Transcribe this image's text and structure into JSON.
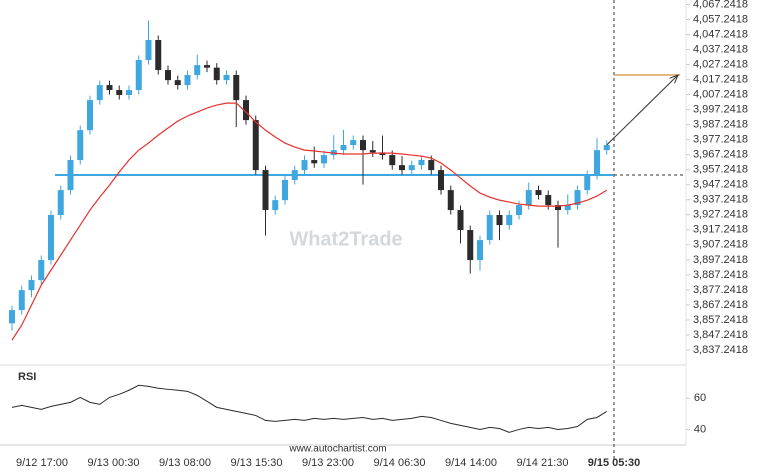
{
  "chart_data": {
    "type": "candlestick",
    "watermark": "What2Trade",
    "source": "www.autochartist.com",
    "up_color": "#3fa7df",
    "down_color": "#2b2b2b",
    "ma_color": "#e8312f",
    "level_color": "#3fa7df",
    "target_color": "#d9a05b",
    "ylim": [
      3829.2418,
      4070.2418
    ],
    "yticks": [
      {
        "value": 4067.2418,
        "label": "4,067.2418"
      },
      {
        "value": 4057.2418,
        "label": "4,057.2418"
      },
      {
        "value": 4047.2418,
        "label": "4,047.2418"
      },
      {
        "value": 4037.2418,
        "label": "4,037.2418"
      },
      {
        "value": 4027.2418,
        "label": "4,027.2418"
      },
      {
        "value": 4017.2418,
        "label": "4,017.2418"
      },
      {
        "value": 4007.2418,
        "label": "4,007.2418"
      },
      {
        "value": 3997.2418,
        "label": "3,997.2418"
      },
      {
        "value": 3987.2418,
        "label": "3,987.2418"
      },
      {
        "value": 3977.2418,
        "label": "3,977.2418"
      },
      {
        "value": 3967.2418,
        "label": "3,967.2418"
      },
      {
        "value": 3957.2418,
        "label": "3,957.2418"
      },
      {
        "value": 3947.2418,
        "label": "3,947.2418"
      },
      {
        "value": 3937.2418,
        "label": "3,937.2418"
      },
      {
        "value": 3927.2418,
        "label": "3,927.2418"
      },
      {
        "value": 3917.2418,
        "label": "3,917.2418"
      },
      {
        "value": 3907.2418,
        "label": "3,907.2418"
      },
      {
        "value": 3897.2418,
        "label": "3,897.2418"
      },
      {
        "value": 3887.2418,
        "label": "3,887.2418"
      },
      {
        "value": 3877.2418,
        "label": "3,877.2418"
      },
      {
        "value": 3867.2418,
        "label": "3,867.2418"
      },
      {
        "value": 3857.2418,
        "label": "3,857.2418"
      },
      {
        "value": 3847.2418,
        "label": "3,847.2418"
      },
      {
        "value": 3837.2418,
        "label": "3,837.2418"
      }
    ],
    "x_labels": [
      "9/12 17:00",
      "9/13 00:30",
      "9/13 08:00",
      "9/13 15:30",
      "9/13 23:00",
      "9/14 06:30",
      "9/14 14:00",
      "9/14 21:30",
      "9/15 05:30"
    ],
    "support": 3953.7,
    "target": 4020.3,
    "candles": [
      [
        3855,
        3866.8,
        3850.1,
        3863.8
      ],
      [
        3863.8,
        3880.1,
        3860.8,
        3877.1
      ],
      [
        3877.1,
        3886.8,
        3872.4,
        3883.8
      ],
      [
        3883.8,
        3900.1,
        3880.8,
        3897.1
      ],
      [
        3897.1,
        3930.1,
        3894.1,
        3927.1
      ],
      [
        3927.1,
        3946.7,
        3924.1,
        3943.7
      ],
      [
        3943.7,
        3966.7,
        3940.7,
        3963.7
      ],
      [
        3963.7,
        3986.6,
        3960.7,
        3983.6
      ],
      [
        3983.6,
        4006.6,
        3980.6,
        4003.6
      ],
      [
        4003.6,
        4016.6,
        4000.6,
        4013.6
      ],
      [
        4013.6,
        4016.6,
        4007.3,
        4010.3
      ],
      [
        4010.3,
        4013.3,
        4004.0,
        4007.0
      ],
      [
        4007.0,
        4013.3,
        4004.0,
        4010.3
      ],
      [
        4010.3,
        4033.3,
        4007.3,
        4030.3
      ],
      [
        4030.3,
        4056.6,
        4027.3,
        4043.6
      ],
      [
        4043.6,
        4046.6,
        4020.6,
        4023.6
      ],
      [
        4023.6,
        4026.6,
        4013.9,
        4016.9
      ],
      [
        4016.9,
        4019.9,
        4010.6,
        4013.6
      ],
      [
        4013.6,
        4023.3,
        4010.6,
        4020.3
      ],
      [
        4020.3,
        4033.9,
        4017.3,
        4026.9
      ],
      [
        4026.9,
        4029.9,
        4022.2,
        4025.2
      ],
      [
        4025.2,
        4028.2,
        4013.9,
        4016.9
      ],
      [
        4016.9,
        4023.3,
        4013.9,
        4020.3
      ],
      [
        4020.3,
        4023.3,
        3985.6,
        4003.6
      ],
      [
        4003.6,
        4006.6,
        3987.3,
        3990.3
      ],
      [
        3990.3,
        3993.3,
        3954.0,
        3957.0
      ],
      [
        3957.0,
        3960.0,
        3913.4,
        3930.4
      ],
      [
        3930.4,
        3940.0,
        3927.4,
        3937.0
      ],
      [
        3937.0,
        3953.4,
        3934.0,
        3950.4
      ],
      [
        3950.4,
        3960.0,
        3947.4,
        3957.0
      ],
      [
        3957.0,
        3966.7,
        3954.0,
        3963.7
      ],
      [
        3963.7,
        3972.7,
        3958.5,
        3961.5
      ],
      [
        3961.5,
        3970.0,
        3958.5,
        3967.0
      ],
      [
        3967.0,
        3980.3,
        3964.0,
        3970.3
      ],
      [
        3970.3,
        3983.7,
        3967.3,
        3973.7
      ],
      [
        3973.7,
        3980.0,
        3970.7,
        3977.0
      ],
      [
        3977.0,
        3980.0,
        3947.3,
        3970.3
      ],
      [
        3970.3,
        3976.3,
        3965.8,
        3968.8
      ],
      [
        3968.8,
        3980.0,
        3964.0,
        3967.0
      ],
      [
        3967.0,
        3970.0,
        3957.3,
        3960.3
      ],
      [
        3960.3,
        3966.3,
        3954.0,
        3957.0
      ],
      [
        3957.0,
        3963.3,
        3954.0,
        3960.3
      ],
      [
        3960.3,
        3966.7,
        3957.3,
        3963.7
      ],
      [
        3963.7,
        3966.7,
        3954.0,
        3957.0
      ],
      [
        3957.0,
        3960.0,
        3940.7,
        3943.7
      ],
      [
        3943.7,
        3946.7,
        3927.4,
        3930.4
      ],
      [
        3930.4,
        3933.4,
        3908.1,
        3917.1
      ],
      [
        3917.1,
        3920.1,
        3888.1,
        3897.1
      ],
      [
        3897.1,
        3913.4,
        3890.1,
        3910.4
      ],
      [
        3910.4,
        3930.1,
        3907.4,
        3927.1
      ],
      [
        3927.1,
        3930.1,
        3910.4,
        3920.4
      ],
      [
        3920.4,
        3930.1,
        3917.4,
        3927.1
      ],
      [
        3927.1,
        3936.7,
        3924.1,
        3933.7
      ],
      [
        3933.7,
        3948.7,
        3930.7,
        3943.7
      ],
      [
        3943.7,
        3946.7,
        3937.4,
        3940.4
      ],
      [
        3940.4,
        3943.4,
        3930.7,
        3933.7
      ],
      [
        3933.7,
        3936.7,
        3905.4,
        3930.4
      ],
      [
        3930.4,
        3940.7,
        3927.4,
        3933.7
      ],
      [
        3933.7,
        3946.7,
        3930.7,
        3943.7
      ],
      [
        3943.7,
        3956.7,
        3940.7,
        3953.7
      ],
      [
        3953.7,
        3978.3,
        3950.7,
        3970.3
      ],
      [
        3970.3,
        3976.7,
        3967.3,
        3973.7
      ]
    ],
    "ma": [
      3843.8,
      3853.8,
      3867.1,
      3880.4,
      3890.4,
      3900.4,
      3910.4,
      3920.4,
      3930.4,
      3939.0,
      3947.0,
      3955.7,
      3963.7,
      3970.3,
      3975.0,
      3980.3,
      3985.0,
      3989.6,
      3993.0,
      3995.6,
      3998.3,
      4000.3,
      4001.6,
      4001.6,
      3995.6,
      3989.0,
      3983.6,
      3979.0,
      3975.0,
      3972.3,
      3970.3,
      3969.7,
      3969.0,
      3968.3,
      3967.7,
      3967.7,
      3967.7,
      3968.3,
      3968.3,
      3968.3,
      3967.7,
      3967.0,
      3966.3,
      3965.0,
      3961.7,
      3957.0,
      3951.7,
      3946.4,
      3941.7,
      3939.0,
      3937.0,
      3935.7,
      3934.4,
      3933.7,
      3933.0,
      3933.0,
      3933.0,
      3933.7,
      3935.0,
      3937.0,
      3939.7,
      3943.7
    ],
    "rsi": {
      "title": "RSI",
      "color": "#2b2b2b",
      "ylim": [
        30,
        75
      ],
      "yticks": [
        40,
        60
      ],
      "values": [
        54.2,
        55.5,
        54.2,
        52.9,
        54.8,
        56.1,
        57.4,
        60.6,
        57.4,
        56.1,
        60.6,
        62.6,
        65.2,
        68.4,
        67.7,
        66.5,
        65.8,
        65.2,
        64.5,
        61.9,
        58.1,
        54.2,
        52.9,
        51.6,
        50.3,
        49.0,
        45.8,
        45.2,
        45.8,
        46.5,
        45.8,
        47.1,
        46.5,
        47.1,
        46.5,
        47.1,
        47.7,
        46.5,
        47.1,
        45.8,
        46.5,
        47.1,
        48.4,
        47.7,
        45.8,
        43.9,
        42.6,
        41.3,
        40.0,
        41.3,
        40.6,
        38.1,
        40.0,
        41.3,
        40.6,
        41.3,
        40.0,
        40.6,
        41.9,
        46.5,
        47.7,
        51.6
      ]
    }
  }
}
